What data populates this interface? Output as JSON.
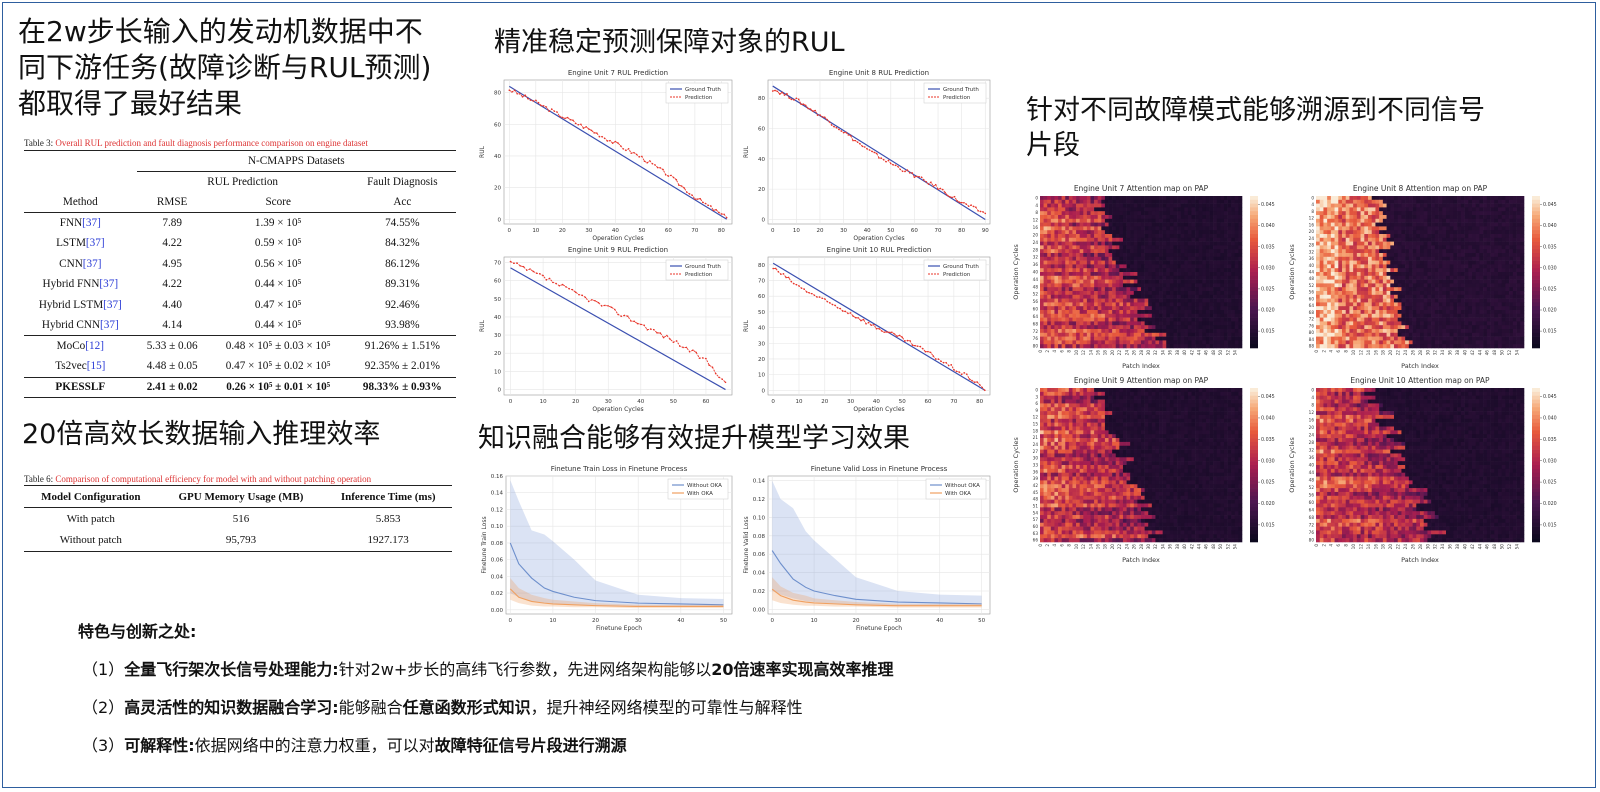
{
  "headings": {
    "main_line1": "在2w步长输入的发动机数据中不",
    "main_line2": "同下游任务(故障诊断与RUL预测)",
    "main_line3": "都取得了最好结果",
    "efficiency": "20倍高效长数据输入推理效率",
    "rul": "精准稳定预测保障对象的RUL",
    "knowledge": "知识融合能够有效提升模型学习效果",
    "attention_line1": "针对不同故障模式能够溯源到不同信号",
    "attention_line2": "片段"
  },
  "table3": {
    "caption_label": "Table 3:",
    "caption_text": "Overall RUL prediction and fault diagnosis performance comparison on engine dataset",
    "dataset": "N-CMAPPS Datasets",
    "group_rul": "RUL Prediction",
    "group_fault": "Fault Diagnosis",
    "col_method": "Method",
    "col_rmse": "RMSE",
    "col_score": "Score",
    "col_acc": "Acc",
    "rows": [
      {
        "method": "FNN",
        "cite": "[37]",
        "rmse": "7.89",
        "score": "1.39 × 10⁵",
        "acc": "74.55%"
      },
      {
        "method": "LSTM",
        "cite": "[37]",
        "rmse": "4.22",
        "score": "0.59 × 10⁵",
        "acc": "84.32%"
      },
      {
        "method": "CNN",
        "cite": "[37]",
        "rmse": "4.95",
        "score": "0.56 × 10⁵",
        "acc": "86.12%"
      },
      {
        "method": "Hybrid FNN",
        "cite": "[37]",
        "rmse": "4.22",
        "score": "0.44 × 10⁵",
        "acc": "89.31%"
      },
      {
        "method": "Hybrid LSTM",
        "cite": "[37]",
        "rmse": "4.40",
        "score": "0.47 × 10⁵",
        "acc": "92.46%"
      },
      {
        "method": "Hybrid CNN",
        "cite": "[37]",
        "rmse": "4.14",
        "score": "0.44 × 10⁵",
        "acc": "93.98%"
      },
      {
        "method": "MoCo",
        "cite": "[12]",
        "rmse": "5.33 ± 0.06",
        "score": "0.48 × 10⁵ ± 0.03 × 10⁵",
        "acc": "91.26% ± 1.51%"
      },
      {
        "method": "Ts2vec",
        "cite": "[15]",
        "rmse": "4.48 ± 0.05",
        "score": "0.47 × 10⁵ ± 0.02 × 10⁵",
        "acc": "92.35% ± 2.01%"
      },
      {
        "method": "PKESSLF",
        "cite": "",
        "rmse": "2.41 ± 0.02",
        "score": "0.26 × 10⁵ ± 0.01 × 10⁵",
        "acc": "98.33% ± 0.93%"
      }
    ]
  },
  "table6": {
    "caption_label": "Table 6:",
    "caption_text": "Comparison of computational efficiency for model with and without patching operation",
    "col_config": "Model Configuration",
    "col_gpu": "GPU Memory Usage (MB)",
    "col_time": "Inference Time (ms)",
    "rows": [
      {
        "config": "With patch",
        "gpu": "516",
        "time": "5.853"
      },
      {
        "config": "Without patch",
        "gpu": "95,793",
        "time": "1927.173"
      }
    ]
  },
  "features": {
    "title": "特色与创新之处:",
    "items": [
      {
        "num": "（1）",
        "bold": "全量飞行架次长信号处理能力:",
        "text": "针对2w+步长的高纬飞行参数，先进网络架构能够以",
        "bold2": "20倍速率实现高效率推理",
        "text2": ""
      },
      {
        "num": "（2）",
        "bold": "高灵活性的知识数据融合学习:",
        "text": "能够融合",
        "bold2": "任意函数形式知识",
        "text2": "，提升神经网络模型的可靠性与解释性"
      },
      {
        "num": "（3）",
        "bold": "可解释性:",
        "text": "依据网络中的注意力权重，可以对",
        "bold2": "故障特征信号片段进行溯源",
        "text2": ""
      }
    ]
  },
  "colors": {
    "ground_truth": "#3a4fb0",
    "prediction": "#e8352a",
    "without_oka": "#6d8fcc",
    "with_oka": "#f0a060",
    "frame": "#2e5e9e"
  },
  "chart_data": [
    {
      "type": "line",
      "title": "Engine Unit 7 RUL Prediction",
      "xlabel": "Operation Cycles",
      "ylabel": "RUL",
      "xlim": [
        -2,
        84
      ],
      "ylim": [
        -3,
        88
      ],
      "xticks": [
        0,
        10,
        20,
        30,
        40,
        50,
        60,
        70,
        80
      ],
      "yticks": [
        0,
        20,
        40,
        60,
        80
      ],
      "legend": "top-right",
      "series": [
        {
          "name": "Ground Truth",
          "x": [
            0,
            82
          ],
          "y": [
            84,
            0
          ]
        },
        {
          "name": "Prediction",
          "x": [
            0,
            10,
            20,
            30,
            40,
            50,
            60,
            70,
            80,
            82
          ],
          "y": [
            82,
            74,
            65,
            57,
            48,
            39,
            28,
            14,
            3,
            1
          ]
        }
      ]
    },
    {
      "type": "line",
      "title": "Engine Unit 8 RUL Prediction",
      "xlabel": "Operation Cycles",
      "ylabel": "RUL",
      "xlim": [
        -2,
        92
      ],
      "ylim": [
        -3,
        92
      ],
      "xticks": [
        0,
        10,
        20,
        30,
        40,
        50,
        60,
        70,
        80,
        90
      ],
      "yticks": [
        0,
        20,
        40,
        60,
        80
      ],
      "legend": "top-right",
      "series": [
        {
          "name": "Ground Truth",
          "x": [
            0,
            90
          ],
          "y": [
            88,
            0
          ]
        },
        {
          "name": "Prediction",
          "x": [
            0,
            10,
            20,
            30,
            40,
            50,
            60,
            70,
            80,
            90
          ],
          "y": [
            86,
            79,
            69,
            58,
            46,
            37,
            29,
            21,
            11,
            4
          ]
        }
      ]
    },
    {
      "type": "line",
      "title": "Engine Unit 9 RUL Prediction",
      "xlabel": "Operation Cycles",
      "ylabel": "RUL",
      "xlim": [
        -2,
        68
      ],
      "ylim": [
        -3,
        73
      ],
      "xticks": [
        0,
        10,
        20,
        30,
        40,
        50,
        60
      ],
      "yticks": [
        0,
        10,
        20,
        30,
        40,
        50,
        60,
        70
      ],
      "legend": "top-right",
      "series": [
        {
          "name": "Ground Truth",
          "x": [
            0,
            66
          ],
          "y": [
            67,
            0
          ]
        },
        {
          "name": "Prediction",
          "x": [
            0,
            10,
            20,
            30,
            40,
            50,
            60,
            66
          ],
          "y": [
            70,
            62,
            53,
            45,
            36,
            27,
            16,
            4
          ]
        }
      ]
    },
    {
      "type": "line",
      "title": "Engine Unit 10 RUL Prediction",
      "xlabel": "Operation Cycles",
      "ylabel": "RUL",
      "xlim": [
        -2,
        84
      ],
      "ylim": [
        -3,
        85
      ],
      "xticks": [
        0,
        10,
        20,
        30,
        40,
        50,
        60,
        70,
        80
      ],
      "yticks": [
        0,
        10,
        20,
        30,
        40,
        50,
        60,
        70,
        80
      ],
      "legend": "top-right",
      "series": [
        {
          "name": "Ground Truth",
          "x": [
            0,
            82
          ],
          "y": [
            81,
            0
          ]
        },
        {
          "name": "Prediction",
          "x": [
            0,
            10,
            20,
            30,
            40,
            50,
            60,
            70,
            80,
            82
          ],
          "y": [
            78,
            66,
            57,
            49,
            40,
            33,
            24,
            14,
            4,
            0
          ]
        }
      ]
    },
    {
      "type": "area",
      "title": "Finetune Train Loss in Finetune Process",
      "xlabel": "Finetune Epoch",
      "ylabel": "Finetune Train Loss",
      "xlim": [
        -1,
        52
      ],
      "ylim": [
        -0.005,
        0.16
      ],
      "xticks": [
        0,
        10,
        20,
        30,
        40,
        50
      ],
      "yticks": [
        0.0,
        0.02,
        0.04,
        0.06,
        0.08,
        0.1,
        0.12,
        0.14,
        0.16
      ],
      "legend": "top-right",
      "series": [
        {
          "name": "Without OKA",
          "x": [
            0,
            2,
            5,
            8,
            10,
            15,
            20,
            30,
            40,
            50
          ],
          "y": [
            0.08,
            0.055,
            0.038,
            0.026,
            0.022,
            0.015,
            0.011,
            0.008,
            0.007,
            0.006
          ],
          "lower": [
            0.02,
            0.015,
            0.01,
            0.008,
            0.007,
            0.006,
            0.005,
            0.004,
            0.004,
            0.004
          ],
          "upper": [
            0.155,
            0.13,
            0.095,
            0.09,
            0.082,
            0.06,
            0.035,
            0.018,
            0.014,
            0.013
          ]
        },
        {
          "name": "With OKA",
          "x": [
            0,
            2,
            5,
            8,
            10,
            15,
            20,
            30,
            40,
            50
          ],
          "y": [
            0.025,
            0.015,
            0.01,
            0.008,
            0.007,
            0.006,
            0.005,
            0.004,
            0.004,
            0.004
          ],
          "lower": [
            0.012,
            0.008,
            0.005,
            0.004,
            0.004,
            0.003,
            0.003,
            0.002,
            0.002,
            0.002
          ],
          "upper": [
            0.038,
            0.026,
            0.018,
            0.014,
            0.012,
            0.01,
            0.008,
            0.006,
            0.006,
            0.006
          ]
        }
      ]
    },
    {
      "type": "area",
      "title": "Finetune Valid Loss in Finetune Process",
      "xlabel": "Finetune Epoch",
      "ylabel": "Finetune Valid Loss",
      "xlim": [
        -1,
        52
      ],
      "ylim": [
        -0.005,
        0.145
      ],
      "xticks": [
        0,
        10,
        20,
        30,
        40,
        50
      ],
      "yticks": [
        0.0,
        0.02,
        0.04,
        0.06,
        0.08,
        0.1,
        0.12,
        0.14
      ],
      "legend": "top-right",
      "series": [
        {
          "name": "Without OKA",
          "x": [
            0,
            2,
            5,
            8,
            10,
            15,
            20,
            30,
            40,
            50
          ],
          "y": [
            0.064,
            0.05,
            0.033,
            0.024,
            0.02,
            0.015,
            0.011,
            0.008,
            0.007,
            0.006
          ],
          "lower": [
            0.02,
            0.016,
            0.012,
            0.009,
            0.008,
            0.006,
            0.005,
            0.004,
            0.004,
            0.004
          ],
          "upper": [
            0.14,
            0.12,
            0.11,
            0.085,
            0.075,
            0.055,
            0.035,
            0.02,
            0.016,
            0.015
          ]
        },
        {
          "name": "With OKA",
          "x": [
            0,
            2,
            5,
            8,
            10,
            15,
            20,
            30,
            40,
            50
          ],
          "y": [
            0.022,
            0.015,
            0.01,
            0.008,
            0.007,
            0.006,
            0.005,
            0.004,
            0.004,
            0.004
          ],
          "lower": [
            0.01,
            0.007,
            0.005,
            0.004,
            0.004,
            0.003,
            0.003,
            0.002,
            0.002,
            0.002
          ],
          "upper": [
            0.035,
            0.025,
            0.018,
            0.015,
            0.012,
            0.01,
            0.008,
            0.006,
            0.006,
            0.006
          ]
        }
      ]
    },
    {
      "type": "heatmap",
      "title": "Engine Unit 7 Attention map on PAP",
      "xlabel": "Patch Index",
      "ylabel": "Operation Cycles",
      "rows": 84,
      "cols": 56,
      "colorbar": [
        0.015,
        0.02,
        0.025,
        0.03,
        0.035,
        0.04,
        0.045
      ],
      "yticklabels": [
        "0",
        "4",
        "8",
        "12",
        "16",
        "20",
        "24",
        "28",
        "32",
        "36",
        "40",
        "44",
        "48",
        "52",
        "56",
        "60",
        "64",
        "68",
        "72",
        "76",
        "80"
      ],
      "xticklabels": [
        "0",
        "2",
        "4",
        "6",
        "8",
        "10",
        "12",
        "14",
        "16",
        "18",
        "20",
        "22",
        "24",
        "26",
        "28",
        "30",
        "32",
        "34",
        "36",
        "38",
        "40",
        "42",
        "44",
        "46",
        "48",
        "50",
        "52",
        "54"
      ]
    },
    {
      "type": "heatmap",
      "title": "Engine Unit 8 Attention map on PAP",
      "xlabel": "Patch Index",
      "ylabel": "Operation Cycles",
      "rows": 90,
      "cols": 56,
      "colorbar": [
        0.015,
        0.02,
        0.025,
        0.03,
        0.035,
        0.04,
        0.045
      ],
      "yticklabels": [
        "0",
        "4",
        "8",
        "12",
        "16",
        "20",
        "24",
        "28",
        "32",
        "36",
        "40",
        "44",
        "48",
        "52",
        "56",
        "60",
        "64",
        "68",
        "72",
        "76",
        "80",
        "84",
        "88"
      ],
      "xticklabels": [
        "0",
        "2",
        "4",
        "6",
        "8",
        "10",
        "12",
        "14",
        "16",
        "18",
        "20",
        "22",
        "24",
        "26",
        "28",
        "30",
        "32",
        "34",
        "36",
        "38",
        "40",
        "42",
        "44",
        "46",
        "48",
        "50",
        "52",
        "54"
      ]
    },
    {
      "type": "heatmap",
      "title": "Engine Unit 9 Attention map on PAP",
      "xlabel": "Patch Index",
      "ylabel": "Operation Cycles",
      "rows": 66,
      "cols": 56,
      "colorbar": [
        0.015,
        0.02,
        0.025,
        0.03,
        0.035,
        0.04,
        0.045
      ],
      "yticklabels": [
        "0",
        "3",
        "6",
        "9",
        "12",
        "15",
        "18",
        "21",
        "24",
        "27",
        "30",
        "33",
        "36",
        "39",
        "42",
        "45",
        "48",
        "51",
        "54",
        "57",
        "60",
        "63",
        "66"
      ],
      "xticklabels": [
        "0",
        "2",
        "4",
        "6",
        "8",
        "10",
        "12",
        "14",
        "16",
        "18",
        "20",
        "22",
        "24",
        "26",
        "28",
        "30",
        "32",
        "34",
        "36",
        "38",
        "40",
        "42",
        "44",
        "46",
        "48",
        "50",
        "52",
        "54"
      ]
    },
    {
      "type": "heatmap",
      "title": "Engine Unit 10 Attention map on PAP",
      "xlabel": "Patch Index",
      "ylabel": "Operation Cycles",
      "rows": 82,
      "cols": 56,
      "colorbar": [
        0.015,
        0.02,
        0.025,
        0.03,
        0.035,
        0.04,
        0.045
      ],
      "yticklabels": [
        "0",
        "4",
        "8",
        "12",
        "16",
        "20",
        "24",
        "28",
        "32",
        "36",
        "40",
        "44",
        "48",
        "52",
        "56",
        "60",
        "64",
        "68",
        "72",
        "76",
        "80"
      ],
      "xticklabels": [
        "0",
        "2",
        "4",
        "6",
        "8",
        "10",
        "12",
        "14",
        "16",
        "18",
        "20",
        "22",
        "24",
        "26",
        "28",
        "30",
        "32",
        "34",
        "36",
        "38",
        "40",
        "42",
        "44",
        "46",
        "48",
        "50",
        "52",
        "54"
      ]
    }
  ]
}
